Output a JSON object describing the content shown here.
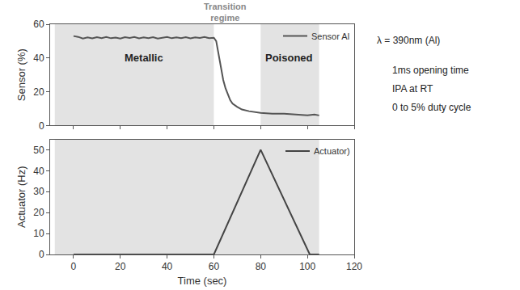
{
  "chart_data": [
    {
      "type": "line",
      "y_label": "Sensor (%)",
      "x": [
        0,
        2,
        4,
        6,
        8,
        10,
        12,
        14,
        16,
        18,
        20,
        22,
        24,
        26,
        28,
        30,
        32,
        34,
        36,
        38,
        40,
        42,
        44,
        46,
        48,
        50,
        52,
        54,
        56,
        58,
        60,
        61,
        62,
        63,
        64,
        65,
        66,
        67,
        68,
        70,
        72,
        75,
        80,
        85,
        90,
        95,
        100,
        103,
        105
      ],
      "series": [
        {
          "name": "Sensor Al",
          "color": "#555555",
          "values": [
            53,
            52.5,
            51.5,
            52.2,
            51.6,
            52.3,
            51.8,
            52.4,
            51.7,
            52.1,
            51.5,
            52.3,
            51.9,
            52.4,
            51.6,
            52.2,
            51.8,
            52.3,
            51.5,
            52.1,
            52.4,
            51.7,
            52.2,
            51.8,
            52.3,
            51.6,
            52.2,
            51.9,
            52.4,
            51.8,
            52,
            50,
            42,
            33,
            27,
            22,
            18,
            15,
            13,
            11,
            9.5,
            8.5,
            7.5,
            7,
            7,
            6.5,
            6,
            6.5,
            6
          ]
        }
      ],
      "xlim": [
        -10,
        120
      ],
      "xticks": [
        0,
        20,
        40,
        60,
        80,
        100,
        120
      ],
      "ylim": [
        0,
        60
      ],
      "yticks": [
        0,
        20,
        40,
        60
      ],
      "tick_labels": "y",
      "legend": "top right",
      "grid": false,
      "shaded": [
        {
          "x0": -8,
          "x1": 60,
          "label": "Metallic",
          "label_x": 30,
          "label_y": 40
        },
        {
          "x0": 80,
          "x1": 105,
          "label": "Poisoned",
          "label_x": 92,
          "label_y": 40
        }
      ],
      "annotations": [
        {
          "text": "Transition regime",
          "x": 65,
          "y": 60
        }
      ]
    },
    {
      "type": "line",
      "x_label": "Time (sec)",
      "y_label": "Actuator (Hz)",
      "x": [
        0,
        60,
        80,
        101,
        105
      ],
      "series": [
        {
          "name": "Actuator)",
          "color": "#444444",
          "values": [
            0,
            0,
            50,
            0,
            0
          ]
        }
      ],
      "xlim": [
        -10,
        120
      ],
      "xticks": [
        0,
        20,
        40,
        60,
        80,
        100,
        120
      ],
      "ylim": [
        0,
        55
      ],
      "yticks": [
        0,
        10,
        20,
        30,
        40,
        50
      ],
      "legend": "top right",
      "grid": false,
      "shaded": [
        {
          "x0": -8,
          "x1": 105
        }
      ]
    }
  ],
  "side_text": [
    "λ = 390nm (Al)",
    "1ms opening time",
    "IPA at RT",
    "0 to 5% duty cycle"
  ]
}
